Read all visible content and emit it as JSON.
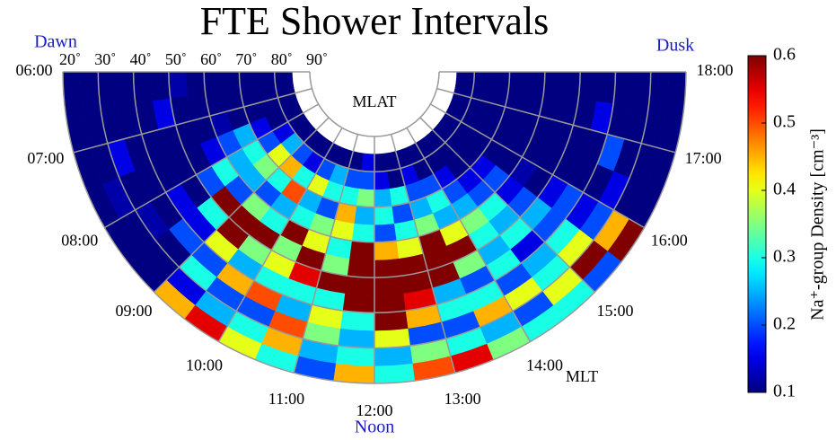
{
  "chart_data": {
    "type": "polar_heatmap",
    "title": "FTE Shower Intervals",
    "annotations": {
      "dawn": "Dawn",
      "dusk": "Dusk",
      "noon": "Noon",
      "mlat": "MLAT",
      "mlt": "MLT"
    },
    "colorbar_label": "Na⁺-group Density  [cm⁻³]",
    "colormap": "jet",
    "x_bins": [
      6,
      6.5,
      7,
      7.5,
      8,
      8.5,
      9,
      9.5,
      10,
      10.5,
      11,
      11.5,
      12,
      12.5,
      13,
      13.5,
      14,
      14.5,
      15,
      15.5,
      16,
      16.5,
      17,
      17.5,
      18
    ],
    "lat_bins": [
      20,
      25,
      30,
      35,
      40,
      45,
      50,
      55,
      60,
      65,
      70,
      75,
      80,
      85,
      90
    ],
    "xlim": [
      6,
      18
    ],
    "xticks": [
      {
        "value": 6,
        "label": "06:00"
      },
      {
        "value": 7,
        "label": "07:00"
      },
      {
        "value": 8,
        "label": "08:00"
      },
      {
        "value": 9,
        "label": "09:00"
      },
      {
        "value": 10,
        "label": "10:00"
      },
      {
        "value": 11,
        "label": "11:00"
      },
      {
        "value": 12,
        "label": "12:00"
      },
      {
        "value": 13,
        "label": "13:00"
      },
      {
        "value": 14,
        "label": "14:00"
      },
      {
        "value": 15,
        "label": "15:00"
      },
      {
        "value": 16,
        "label": "16:00"
      },
      {
        "value": 17,
        "label": "17:00"
      },
      {
        "value": 18,
        "label": "18:00"
      }
    ],
    "ylim": [
      20,
      90
    ],
    "yticks": [
      {
        "value": 20,
        "label": "20˚"
      },
      {
        "value": 30,
        "label": "30˚"
      },
      {
        "value": 40,
        "label": "40˚"
      },
      {
        "value": 50,
        "label": "50˚"
      },
      {
        "value": 60,
        "label": "60˚"
      },
      {
        "value": 70,
        "label": "70˚"
      },
      {
        "value": 80,
        "label": "80˚"
      },
      {
        "value": 90,
        "label": "90˚"
      }
    ],
    "zlim": [
      0.1,
      0.6
    ],
    "zticks": [
      0.1,
      0.2,
      0.3,
      0.4,
      0.5,
      0.6
    ],
    "grid": true,
    "z": [
      [
        0.1,
        0.1,
        0.1,
        0.1,
        0.1,
        0.1,
        0.12,
        0.1,
        0.1,
        0.1,
        0.1,
        0.1,
        0.1,
        null
      ],
      [
        0.1,
        0.1,
        0.1,
        0.1,
        0.1,
        0.15,
        0.1,
        0.1,
        0.1,
        0.1,
        0.1,
        0.1,
        0.1,
        null
      ],
      [
        0.1,
        0.1,
        0.15,
        0.1,
        0.1,
        0.1,
        0.1,
        0.1,
        0.12,
        0.1,
        0.1,
        0.1,
        0.1,
        null
      ],
      [
        0.1,
        0.12,
        0.1,
        0.1,
        0.1,
        0.1,
        0.1,
        0.15,
        0.2,
        0.25,
        0.15,
        0.1,
        0.1,
        null
      ],
      [
        0.1,
        0.1,
        0.12,
        0.1,
        0.15,
        0.1,
        0.2,
        0.3,
        0.25,
        0.3,
        0.2,
        0.15,
        0.1,
        null
      ],
      [
        0.1,
        0.1,
        0.1,
        0.2,
        0.15,
        0.3,
        0.6,
        0.2,
        0.25,
        0.35,
        0.4,
        0.25,
        0.1,
        null
      ],
      [
        0.45,
        0.15,
        0.3,
        0.2,
        0.4,
        0.6,
        0.6,
        0.35,
        0.2,
        0.3,
        0.45,
        0.2,
        0.1,
        null
      ],
      [
        0.55,
        0.25,
        0.2,
        0.45,
        0.25,
        0.35,
        0.6,
        0.3,
        0.25,
        0.5,
        0.3,
        0.15,
        0.1,
        null
      ],
      [
        0.4,
        0.3,
        0.2,
        0.5,
        0.3,
        0.4,
        0.35,
        0.6,
        0.3,
        0.25,
        0.4,
        0.2,
        0.1,
        null
      ],
      [
        0.3,
        0.45,
        0.5,
        0.25,
        0.3,
        0.55,
        0.6,
        0.4,
        0.35,
        0.2,
        0.3,
        0.25,
        0.1,
        null
      ],
      [
        0.2,
        0.25,
        0.35,
        0.4,
        0.3,
        0.6,
        0.35,
        0.3,
        0.4,
        0.45,
        0.3,
        0.2,
        0.1,
        null
      ],
      [
        0.45,
        0.3,
        0.25,
        0.3,
        0.6,
        0.6,
        0.6,
        0.6,
        0.3,
        0.25,
        0.35,
        0.2,
        0.15,
        null
      ],
      [
        0.3,
        0.25,
        0.4,
        0.6,
        0.6,
        0.6,
        0.6,
        0.45,
        0.2,
        0.3,
        0.25,
        0.15,
        0.1,
        null
      ],
      [
        0.5,
        0.35,
        0.2,
        0.45,
        0.55,
        0.6,
        0.6,
        0.4,
        0.3,
        0.2,
        0.3,
        0.1,
        0.1,
        null
      ],
      [
        0.55,
        0.3,
        0.2,
        0.3,
        0.25,
        0.6,
        0.6,
        0.6,
        0.35,
        0.25,
        0.2,
        0.15,
        0.1,
        null
      ],
      [
        0.35,
        0.25,
        0.45,
        0.3,
        0.2,
        0.35,
        0.6,
        0.4,
        0.25,
        0.3,
        0.2,
        0.1,
        0.1,
        null
      ],
      [
        0.3,
        0.2,
        0.4,
        0.2,
        0.3,
        0.25,
        0.3,
        0.35,
        0.25,
        0.2,
        0.15,
        0.1,
        0.1,
        null
      ],
      [
        0.3,
        0.4,
        0.3,
        0.25,
        0.15,
        0.3,
        0.25,
        0.3,
        0.2,
        0.15,
        0.1,
        0.1,
        0.1,
        null
      ],
      [
        0.2,
        0.6,
        0.4,
        0.3,
        0.2,
        0.25,
        0.2,
        0.15,
        0.2,
        0.15,
        0.1,
        0.1,
        0.1,
        null
      ],
      [
        0.6,
        0.45,
        0.2,
        0.15,
        0.2,
        0.15,
        0.1,
        0.12,
        0.1,
        0.1,
        0.1,
        0.1,
        0.1,
        null
      ],
      [
        0.1,
        0.1,
        0.15,
        0.1,
        0.1,
        0.1,
        0.1,
        0.1,
        0.1,
        0.1,
        0.1,
        0.1,
        0.1,
        null
      ],
      [
        0.1,
        0.1,
        0.1,
        0.2,
        0.1,
        0.1,
        0.1,
        0.1,
        0.1,
        0.1,
        0.1,
        0.1,
        0.1,
        null
      ],
      [
        0.1,
        0.1,
        0.1,
        0.1,
        0.15,
        0.1,
        0.1,
        0.1,
        0.1,
        0.1,
        0.1,
        0.1,
        0.1,
        null
      ],
      [
        0.1,
        0.1,
        0.1,
        0.1,
        0.1,
        0.1,
        0.1,
        0.1,
        0.1,
        0.1,
        0.1,
        0.1,
        0.1,
        null
      ]
    ]
  }
}
